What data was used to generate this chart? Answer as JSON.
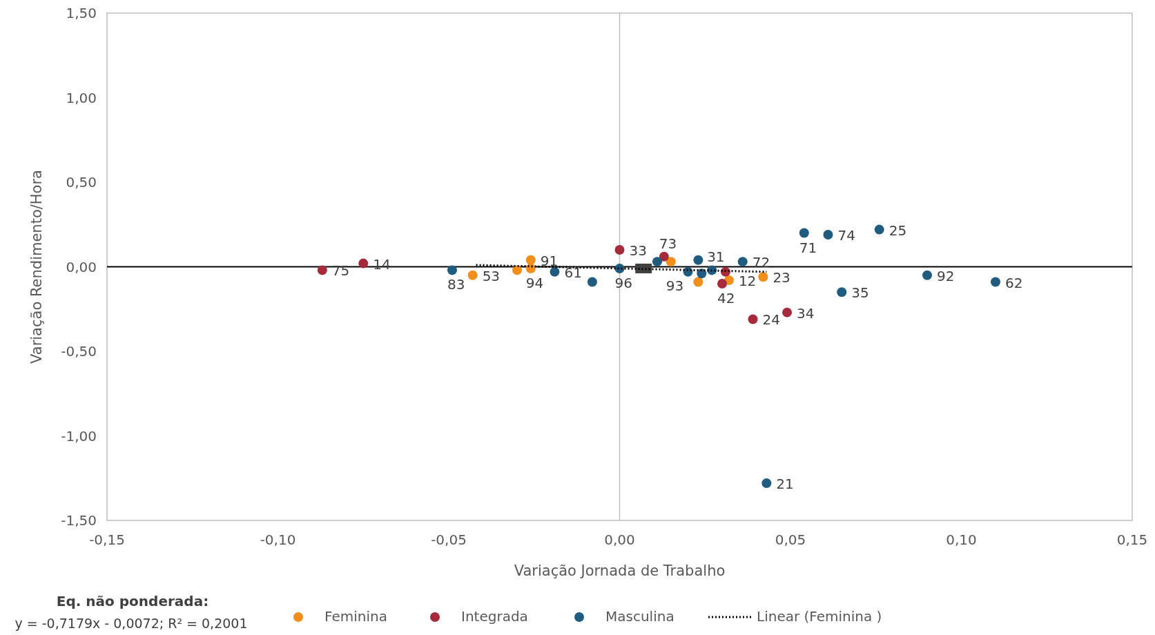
{
  "chart_data": {
    "type": "scatter",
    "xlabel": "Variação Jornada de Trabalho",
    "ylabel": "Variação Rendimento/Hora",
    "xlim": [
      -0.15,
      0.15
    ],
    "ylim": [
      -1.5,
      1.5
    ],
    "xticks": [
      {
        "value": -0.15,
        "label": "-0,15"
      },
      {
        "value": -0.1,
        "label": "-0,10"
      },
      {
        "value": -0.05,
        "label": "-0,05"
      },
      {
        "value": 0,
        "label": "0,00"
      },
      {
        "value": 0.05,
        "label": "0,05"
      },
      {
        "value": 0.1,
        "label": "0,10"
      },
      {
        "value": 0.15,
        "label": "0,15"
      }
    ],
    "yticks": [
      {
        "value": -1.5,
        "label": "-1,50"
      },
      {
        "value": -1,
        "label": "-1,00"
      },
      {
        "value": -0.5,
        "label": "-0,50"
      },
      {
        "value": 0,
        "label": "0,00"
      },
      {
        "value": 0.5,
        "label": "0,50"
      },
      {
        "value": 1,
        "label": "1,00"
      },
      {
        "value": 1.5,
        "label": "1,50"
      }
    ],
    "marker": "circle",
    "legend": "bottom",
    "grid": false,
    "ref_lines": [
      {
        "axis": "y",
        "value": 0,
        "color": "#000000"
      },
      {
        "axis": "x",
        "value": 0,
        "color": "#bfbfbf"
      }
    ],
    "series": [
      {
        "name": "Feminina",
        "color": "#f28e1c",
        "x": [
          -0.043,
          -0.03,
          -0.026,
          -0.026,
          0.015,
          0.023,
          0.032,
          null,
          0.042
        ],
        "values": [
          -0.05,
          -0.02,
          0.04,
          -0.01,
          0.03,
          -0.09,
          -0.08,
          null,
          -0.06
        ]
      },
      {
        "name": "Integrada",
        "color": "#a52a3a",
        "x": [
          -0.087,
          -0.075,
          0,
          0.013,
          0.03,
          0.031,
          0.039,
          0.049
        ],
        "values": [
          -0.02,
          0.02,
          0.1,
          0.06,
          -0.1,
          -0.03,
          -0.31,
          -0.27
        ]
      },
      {
        "name": "Masculina",
        "color": "#1f5c80",
        "x": [
          -0.049,
          -0.019,
          -0.008,
          0,
          0.011,
          0.023,
          0.02,
          0.024,
          0.027,
          0.036,
          0.054,
          0.061,
          0.076,
          0.09,
          0.11,
          0.065,
          0.043
        ],
        "values": [
          -0.02,
          -0.03,
          -0.09,
          -0.01,
          0.03,
          0.04,
          -0.03,
          -0.04,
          -0.02,
          0.03,
          0.2,
          0.19,
          0.22,
          -0.05,
          -0.09,
          -0.15,
          -1.28
        ]
      },
      {
        "color": "#404040",
        "marker": "square",
        "x": [
          0.006,
          0.008
        ],
        "values": [
          -0.01,
          -0.01
        ]
      },
      {
        "name": "Linear (Feminina  )",
        "type": "line",
        "marker": "none",
        "line_style": "dotted",
        "color": "#000000",
        "x": [
          -0.042,
          0.043
        ],
        "values": [
          0.01,
          -0.03
        ]
      }
    ],
    "annotations": [
      "Eq. não ponderada:",
      "y = -0,7179x - 0,0072; R² = 0,2001",
      {
        "text": "53",
        "x": -0.043,
        "y": -0.05
      },
      {
        "text": "91",
        "x": -0.026,
        "y": 0.04
      },
      {
        "text": "94",
        "x": -0.026,
        "y": -0.01
      },
      {
        "text": "93",
        "x": 0.015,
        "y": 0.03
      },
      {
        "text": "12",
        "x": 0.032,
        "y": -0.08
      },
      {
        "text": "23",
        "x": 0.042,
        "y": -0.06
      },
      {
        "text": "75",
        "x": -0.087,
        "y": -0.02
      },
      {
        "text": "14",
        "x": -0.075,
        "y": 0.02
      },
      {
        "text": "33",
        "x": 0,
        "y": 0.1
      },
      {
        "text": "73",
        "x": 0.013,
        "y": 0.06
      },
      {
        "text": "42",
        "x": 0.03,
        "y": -0.1
      },
      {
        "text": "24",
        "x": 0.039,
        "y": -0.31
      },
      {
        "text": "34",
        "x": 0.049,
        "y": -0.27
      },
      {
        "text": "83",
        "x": -0.049,
        "y": -0.02
      },
      {
        "text": "61",
        "x": -0.019,
        "y": -0.03
      },
      {
        "text": "96",
        "x": 0,
        "y": -0.01
      },
      {
        "text": "31",
        "x": 0.027,
        "y": -0.02
      },
      {
        "text": "72",
        "x": 0.036,
        "y": 0.03
      },
      {
        "text": "71",
        "x": 0.054,
        "y": 0.2
      },
      {
        "text": "74",
        "x": 0.061,
        "y": 0.19
      },
      {
        "text": "25",
        "x": 0.076,
        "y": 0.22
      },
      {
        "text": "92",
        "x": 0.09,
        "y": -0.05
      },
      {
        "text": "62",
        "x": 0.11,
        "y": -0.09
      },
      {
        "text": "35",
        "x": 0.065,
        "y": -0.15
      },
      {
        "text": "21",
        "x": 0.043,
        "y": -1.28
      }
    ]
  }
}
